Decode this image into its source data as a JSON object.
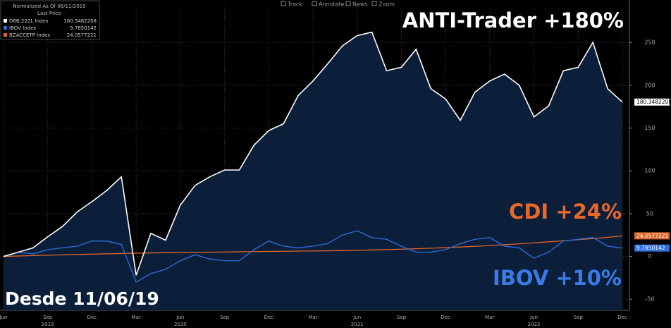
{
  "chart_data": {
    "type": "line",
    "legend_header": [
      "Normalized As Of 06/11/2019",
      "Last Price"
    ],
    "toolbar": [
      "Track",
      "Annotate",
      "News",
      "Zoom"
    ],
    "annotations": [
      {
        "text": "ANTI-Trader +180%",
        "color": "#ffffff"
      },
      {
        "text": "CDI +24%",
        "color": "#e8672a"
      },
      {
        "text": "IBOV +10%",
        "color": "#3a7be8"
      },
      {
        "text": "Desde 11/06/19",
        "color": "#ffffff"
      }
    ],
    "x": [
      "2019-06",
      "2019-07",
      "2019-08",
      "2019-09",
      "2019-10",
      "2019-11",
      "2019-12",
      "2020-01",
      "2020-02",
      "2020-03",
      "2020-04",
      "2020-05",
      "2020-06",
      "2020-07",
      "2020-08",
      "2020-09",
      "2020-10",
      "2020-11",
      "2020-12",
      "2021-01",
      "2021-02",
      "2021-03",
      "2021-04",
      "2021-05",
      "2021-06",
      "2021-07",
      "2021-08",
      "2021-09",
      "2021-10",
      "2021-11",
      "2021-12",
      "2022-01",
      "2022-02",
      "2022-03",
      "2022-04",
      "2022-05",
      "2022-06",
      "2022-07",
      "2022-08",
      "2022-09",
      "2022-10",
      "2022-11",
      "2022-12"
    ],
    "series": [
      {
        "name": "D6B:222L Index",
        "color": "#ffffff",
        "values": [
          0,
          5,
          10,
          23,
          35,
          52,
          64,
          77,
          93,
          -22,
          27,
          19,
          60,
          83,
          93,
          101,
          101,
          130,
          147,
          155,
          188,
          205,
          225,
          246,
          258,
          262,
          217,
          221,
          242,
          196,
          184,
          159,
          192,
          205,
          213,
          200,
          163,
          176,
          217,
          221,
          250,
          196,
          180.3482208
        ]
      },
      {
        "name": "IBOV Index",
        "color": "#2f6fe0",
        "values": [
          0,
          5,
          3,
          8,
          10,
          12,
          18,
          18,
          14,
          -30,
          -20,
          -15,
          -5,
          2,
          -3,
          -5,
          -5,
          8,
          18,
          12,
          10,
          12,
          15,
          25,
          30,
          22,
          20,
          12,
          5,
          5,
          8,
          15,
          20,
          22,
          12,
          10,
          -2,
          5,
          18,
          20,
          22,
          12,
          9.7850142
        ]
      },
      {
        "name": "BZACCETP Index",
        "color": "#e0662a",
        "values": [
          0,
          0.5,
          1.0,
          1.4,
          1.9,
          2.3,
          2.7,
          3.1,
          3.4,
          3.8,
          4.1,
          4.4,
          4.6,
          4.8,
          5.0,
          5.2,
          5.4,
          5.6,
          5.8,
          6.0,
          6.2,
          6.4,
          6.6,
          6.9,
          7.2,
          7.6,
          8.0,
          8.5,
          9.0,
          9.6,
          10.3,
          11.0,
          11.8,
          12.7,
          13.7,
          14.8,
          15.9,
          17.1,
          18.3,
          19.6,
          20.9,
          22.3,
          24.0577221
        ]
      }
    ],
    "xticks": [
      {
        "value": "2019-06",
        "label": "Jun"
      },
      {
        "value": "2019-09",
        "label": "Sep"
      },
      {
        "value": "2019-12",
        "label": "Dec"
      },
      {
        "value": "2020-03",
        "label": "Mar"
      },
      {
        "value": "2020-06",
        "label": "Jun"
      },
      {
        "value": "2020-09",
        "label": "Sep"
      },
      {
        "value": "2020-12",
        "label": "Dec"
      },
      {
        "value": "2021-03",
        "label": "Mar"
      },
      {
        "value": "2021-06",
        "label": "Jun"
      },
      {
        "value": "2021-09",
        "label": "Sep"
      },
      {
        "value": "2021-12",
        "label": "Dec"
      },
      {
        "value": "2022-03",
        "label": "Mar"
      },
      {
        "value": "2022-06",
        "label": "Jun"
      },
      {
        "value": "2022-09",
        "label": "Sep"
      },
      {
        "value": "2022-12",
        "label": "Dec"
      }
    ],
    "year_labels": [
      {
        "value": "2019-09",
        "label": "2019"
      },
      {
        "value": "2020-06",
        "label": "2020"
      },
      {
        "value": "2021-06",
        "label": "2021"
      },
      {
        "value": "2022-06",
        "label": "2022"
      }
    ],
    "ylim": [
      -63,
      293
    ],
    "yticks": [
      -50,
      0,
      50,
      100,
      150,
      200,
      250
    ],
    "grid": true,
    "area_color": "#0b1f3a"
  }
}
